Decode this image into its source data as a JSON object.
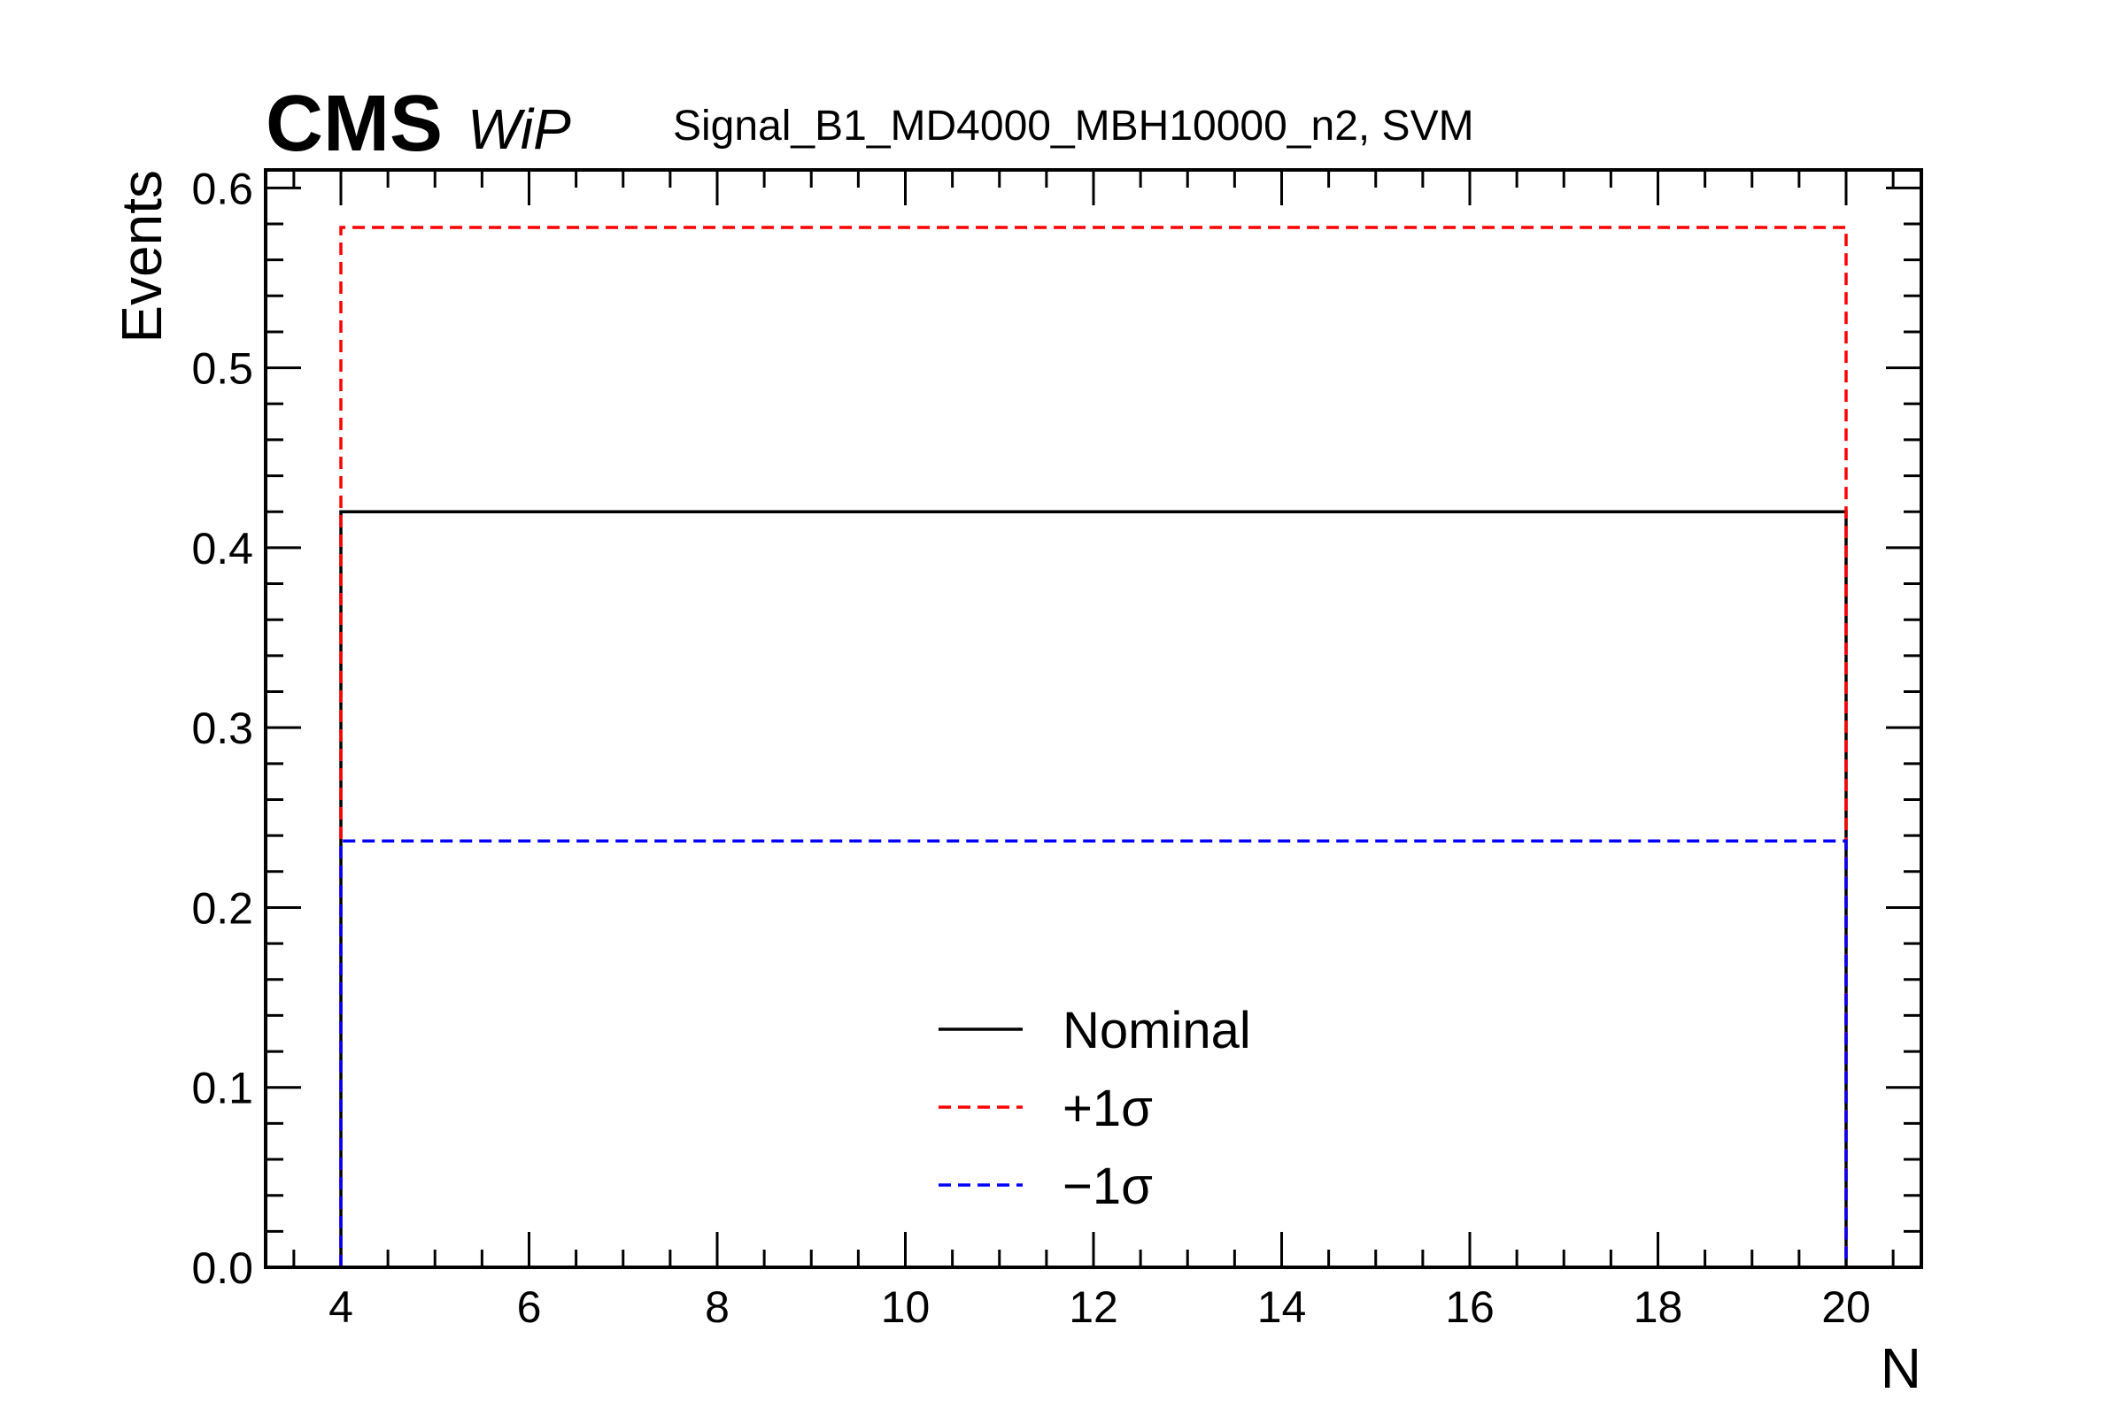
{
  "chart_data": {
    "type": "line",
    "experiment_label": "CMS",
    "status_label": "WiP",
    "title": "Signal_B1_MD4000_MBH10000_n2, SVM",
    "xlabel": "N",
    "ylabel": "Events",
    "xlim": [
      3.2,
      20.8
    ],
    "ylim": [
      0.0,
      0.61
    ],
    "x_ticks": [
      4,
      6,
      8,
      10,
      12,
      14,
      16,
      18,
      20
    ],
    "x_tick_labels": [
      "4",
      "6",
      "8",
      "10",
      "12",
      "14",
      "16",
      "18",
      "20"
    ],
    "y_ticks": [
      0.0,
      0.1,
      0.2,
      0.3,
      0.4,
      0.5,
      0.6
    ],
    "y_tick_labels": [
      "0.0",
      "0.1",
      "0.2",
      "0.3",
      "0.4",
      "0.5",
      "0.6"
    ],
    "grid": false,
    "legend_position": "bottom-center",
    "series": [
      {
        "name": "Nominal",
        "color": "#000000",
        "dashed": false,
        "bin_edges": [
          4,
          20
        ],
        "values": [
          0.42
        ]
      },
      {
        "name": "+1σ",
        "color": "#ff0000",
        "dashed": true,
        "bin_edges": [
          4,
          20
        ],
        "values": [
          0.578
        ]
      },
      {
        "name": "−1σ",
        "color": "#0000ff",
        "dashed": true,
        "bin_edges": [
          4,
          20
        ],
        "values": [
          0.237
        ]
      }
    ]
  }
}
